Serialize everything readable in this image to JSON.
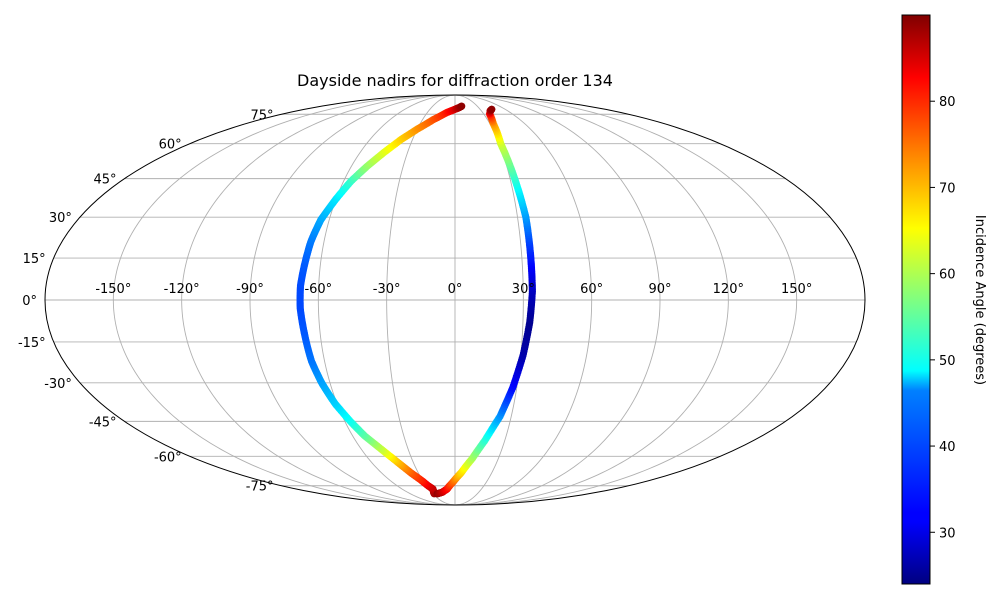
{
  "chart_data": {
    "type": "scatter",
    "projection": "mollweide",
    "title": "Dayside nadirs for diffraction order 134",
    "xlabel": "",
    "ylabel": "",
    "x_ticks": [
      -150,
      -120,
      -90,
      -60,
      -30,
      0,
      30,
      60,
      90,
      120,
      150
    ],
    "x_tick_labels": [
      "-150°",
      "-120°",
      "-90°",
      "-60°",
      "-30°",
      "0°",
      "30°",
      "60°",
      "90°",
      "120°",
      "150°"
    ],
    "y_ticks": [
      -75,
      -60,
      -45,
      -30,
      -15,
      0,
      15,
      30,
      45,
      60,
      75
    ],
    "y_tick_labels": [
      "-75°",
      "-60°",
      "-45°",
      "-30°",
      "-15°",
      "0°",
      "15°",
      "30°",
      "45°",
      "60°",
      "75°"
    ],
    "grid": true,
    "colormap": "jet",
    "colorbar": {
      "label": "Incidence Angle (degrees)",
      "range": [
        24,
        90
      ],
      "ticks": [
        30,
        40,
        50,
        60,
        70,
        80
      ],
      "tick_labels": [
        "30",
        "40",
        "50",
        "60",
        "70",
        "80"
      ],
      "placement": "right"
    },
    "series": [
      {
        "lon": [
          -28,
          -25,
          -28,
          -31,
          -36,
          -41,
          -47,
          -53,
          -57,
          -61,
          -64,
          -66,
          -67,
          -68,
          -68,
          -67,
          -66,
          -64,
          -60,
          -56,
          -51,
          -45,
          -38,
          -30,
          -20,
          -9,
          0,
          5,
          9
        ],
        "lat": [
          -80,
          -77,
          -75,
          -72,
          -68,
          -63,
          -57,
          -51,
          -45,
          -38,
          -30,
          -22,
          -12,
          -3,
          5,
          13,
          21,
          29,
          37,
          44,
          50,
          56,
          62,
          67,
          72,
          76,
          78,
          79,
          80
        ],
        "incidence": [
          88,
          86,
          84,
          80,
          76,
          70,
          62,
          55,
          50,
          46,
          43,
          40,
          38,
          37,
          37,
          38,
          40,
          43,
          47,
          52,
          58,
          63,
          68,
          72,
          76,
          80,
          84,
          87,
          89
        ]
      },
      {
        "lon": [
          -24,
          -16,
          -9,
          -2,
          5,
          12,
          18,
          24,
          28,
          31,
          33,
          34,
          34,
          34,
          34,
          33,
          32,
          31,
          33,
          36,
          40,
          44
        ],
        "lat": [
          -80,
          -79,
          -77,
          -73,
          -68,
          -61,
          -53,
          -43,
          -32,
          -20,
          -8,
          3,
          12,
          20,
          30,
          40,
          50,
          60,
          70,
          75,
          77,
          78
        ],
        "incidence": [
          89,
          86,
          82,
          76,
          68,
          60,
          52,
          42,
          33,
          27,
          25,
          28,
          32,
          36,
          42,
          48,
          55,
          62,
          72,
          80,
          86,
          89
        ]
      }
    ]
  }
}
